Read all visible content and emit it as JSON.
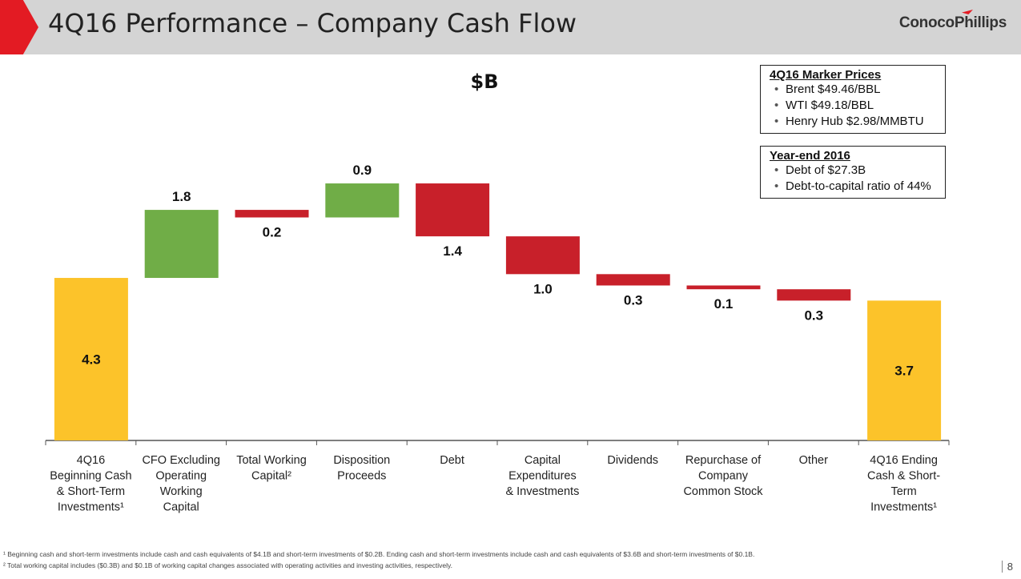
{
  "slide": {
    "title": "4Q16 Performance – Company Cash Flow",
    "logo_text": "ConocoPhillips",
    "page_number": "8",
    "accent_color": "#e31b23"
  },
  "marker_prices": {
    "heading": "4Q16 Marker Prices",
    "items": [
      "Brent $49.46/BBL",
      "WTI $49.18/BBL",
      "Henry Hub $2.98/MMBTU"
    ]
  },
  "year_end": {
    "heading": "Year-end 2016",
    "items": [
      "Debt of $27.3B",
      "Debt-to-capital ratio of 44%"
    ]
  },
  "footnotes": [
    "¹ Beginning cash and short-term investments include cash and cash equivalents of $4.1B and short-term investments of $0.2B. Ending cash and short-term investments include cash and cash equivalents of $3.6B and short-term investments of $0.1B.",
    "² Total working capital includes ($0.3B) and $0.1B of working capital changes associated with operating activities and investing activities, respectively."
  ],
  "chart_data": {
    "type": "bar",
    "subtype": "waterfall",
    "title": "$B",
    "colors": {
      "total": "#fcc32a",
      "increase": "#70ad47",
      "decrease": "#c8202a"
    },
    "categories": [
      [
        "4Q16",
        "Beginning Cash",
        "& Short-Term",
        "Investments¹"
      ],
      [
        "CFO Excluding",
        "Operating",
        "Working",
        "Capital"
      ],
      [
        "Total Working",
        "Capital²"
      ],
      [
        "Disposition",
        "Proceeds"
      ],
      [
        "Debt"
      ],
      [
        "Capital",
        "Expenditures",
        "& Investments"
      ],
      [
        "Dividends"
      ],
      [
        "Repurchase of",
        "Company",
        "Common Stock"
      ],
      [
        "Other"
      ],
      [
        "4Q16 Ending",
        "Cash & Short-",
        "Term",
        "Investments¹"
      ]
    ],
    "steps": [
      {
        "kind": "total",
        "value": 4.3,
        "label": "4.3"
      },
      {
        "kind": "increase",
        "value": 1.8,
        "label": "1.8"
      },
      {
        "kind": "decrease",
        "value": 0.2,
        "label": "0.2"
      },
      {
        "kind": "increase",
        "value": 0.9,
        "label": "0.9"
      },
      {
        "kind": "decrease",
        "value": 1.4,
        "label": "1.4"
      },
      {
        "kind": "decrease",
        "value": 1.0,
        "label": "1.0"
      },
      {
        "kind": "decrease",
        "value": 0.3,
        "label": "0.3"
      },
      {
        "kind": "decrease",
        "value": 0.1,
        "label": "0.1"
      },
      {
        "kind": "decrease",
        "value": 0.3,
        "label": "0.3"
      },
      {
        "kind": "total",
        "value": 3.7,
        "label": "3.7"
      }
    ],
    "ylim": [
      0,
      7.0
    ],
    "grid": false,
    "legend": "none"
  }
}
